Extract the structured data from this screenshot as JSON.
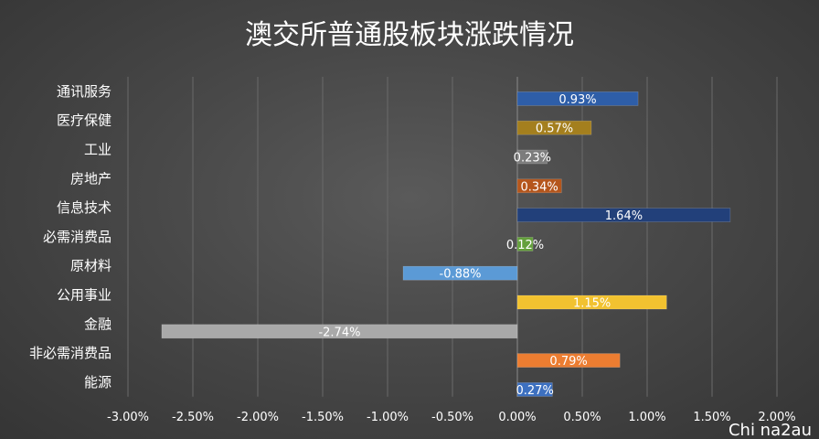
{
  "chart_data": {
    "type": "bar",
    "orientation": "horizontal",
    "title": "澳交所普通股板块涨跌情况",
    "categories": [
      "通讯服务",
      "医疗保健",
      "工业",
      "房地产",
      "信息技术",
      "必需消费品",
      "原材料",
      "公用事业",
      "金融",
      "非必需消费品",
      "能源"
    ],
    "values": [
      0.93,
      0.57,
      0.23,
      0.34,
      1.64,
      0.12,
      -0.88,
      1.15,
      -2.74,
      0.79,
      0.27
    ],
    "data_labels": [
      "0.93%",
      "0.57%",
      "0.23%",
      "0.34%",
      "1.64%",
      "0.12%",
      "-0.88%",
      "1.15%",
      "-2.74%",
      "0.79%",
      "0.27%"
    ],
    "colors": [
      "#2e5ea8",
      "#a47f1e",
      "#7c7c7c",
      "#b5561c",
      "#22407a",
      "#64a03c",
      "#5b9ad6",
      "#f2c230",
      "#a9a9a9",
      "#ec7d31",
      "#3d70c0"
    ],
    "xlim": [
      -3.0,
      2.0
    ],
    "x_ticks": [
      -3.0,
      -2.5,
      -2.0,
      -1.5,
      -1.0,
      -0.5,
      0.0,
      0.5,
      1.0,
      1.5,
      2.0
    ],
    "x_tick_labels": [
      "-3.00%",
      "-2.50%",
      "-2.00%",
      "-1.50%",
      "-1.00%",
      "-0.50%",
      "0.00%",
      "0.50%",
      "1.00%",
      "1.50%",
      "2.00%"
    ],
    "xlabel": "",
    "ylabel": "",
    "grid": true,
    "legend": "none"
  },
  "watermark": "Chi na2au"
}
